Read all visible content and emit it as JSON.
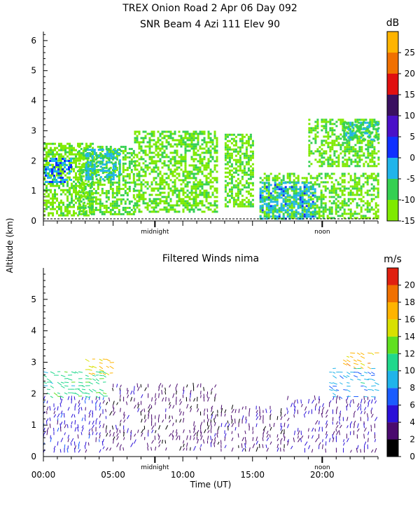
{
  "title_line1": "TREX Onion Road   2 Apr 06 Day 092",
  "title_line2": "SNR Beam 4 Azi 111 Elev 90",
  "shared_ylabel": "Altitude (km)",
  "chart_data": [
    {
      "type": "heatmap",
      "title": "SNR Beam 4 Azi 111 Elev 90",
      "xlabel": "",
      "ylabel": "Altitude (km)",
      "xlim": [
        0,
        24
      ],
      "ylim": [
        0,
        6.3
      ],
      "y_ticks": [
        0,
        1,
        2,
        3,
        4,
        5,
        6
      ],
      "x_markers": [
        {
          "x": 8,
          "label": "midnight"
        },
        {
          "x": 20,
          "label": "noon"
        }
      ],
      "colorbar": {
        "unit": "dB",
        "range": [
          -15,
          30
        ],
        "tick_values": [
          -15,
          -10,
          -5,
          0,
          5,
          10,
          15,
          20,
          25
        ],
        "colors": [
          "#7fea00",
          "#35d052",
          "#20b4ea",
          "#1030ff",
          "#4a10c8",
          "#3a1060",
          "#e01010",
          "#f07000",
          "#ffb400"
        ]
      },
      "regions": [
        {
          "x": [
            0,
            3.5
          ],
          "y": [
            0.2,
            2.6
          ],
          "db": -12
        },
        {
          "x": [
            0.1,
            2.0
          ],
          "y": [
            1.3,
            2.1
          ],
          "db": 0
        },
        {
          "x": [
            2.5,
            6.5
          ],
          "y": [
            0.2,
            2.5
          ],
          "db": -10
        },
        {
          "x": [
            3.0,
            5.5
          ],
          "y": [
            1.4,
            2.4
          ],
          "db": -4
        },
        {
          "x": [
            6.5,
            12.5
          ],
          "y": [
            0.3,
            3.0
          ],
          "db": -11
        },
        {
          "x": [
            13.0,
            15.0
          ],
          "y": [
            0.5,
            2.9
          ],
          "db": -11
        },
        {
          "x": [
            15.5,
            24.0
          ],
          "y": [
            0.1,
            1.6
          ],
          "db": -11
        },
        {
          "x": [
            15.5,
            19.5
          ],
          "y": [
            0.1,
            1.3
          ],
          "db": -3
        },
        {
          "x": [
            19.0,
            24.0
          ],
          "y": [
            1.8,
            3.4
          ],
          "db": -11
        },
        {
          "x": [
            21.5,
            24.0
          ],
          "y": [
            2.7,
            3.3
          ],
          "db": -6
        }
      ]
    },
    {
      "type": "vector",
      "title": "Filtered Winds nima",
      "xlabel": "Time (UT)",
      "ylabel": "Altitude (km)",
      "xlim": [
        0,
        24
      ],
      "ylim": [
        0,
        6
      ],
      "x_ticks": [
        0,
        5,
        10,
        15,
        20
      ],
      "x_tick_labels": [
        "00:00",
        "05:00",
        "10:00",
        "15:00",
        "20:00"
      ],
      "y_ticks": [
        0,
        1,
        2,
        3,
        4,
        5
      ],
      "x_markers": [
        {
          "x": 8,
          "label": "midnight"
        },
        {
          "x": 20,
          "label": "noon"
        }
      ],
      "colorbar": {
        "unit": "m/s",
        "range": [
          0,
          22
        ],
        "tick_values": [
          0,
          2,
          4,
          6,
          8,
          10,
          12,
          14,
          16,
          18,
          20
        ],
        "colors": [
          "#000000",
          "#4a0a6e",
          "#2a10d8",
          "#1a5cff",
          "#20b4ea",
          "#20d88c",
          "#60e020",
          "#d8e000",
          "#ffb400",
          "#f07000",
          "#e02010"
        ]
      },
      "wind_regions": [
        {
          "x": [
            0,
            4.5
          ],
          "y": [
            0.1,
            1.8
          ],
          "speed": 5
        },
        {
          "x": [
            0,
            4.5
          ],
          "y": [
            1.9,
            2.7
          ],
          "speed": 11
        },
        {
          "x": [
            3.0,
            5.0
          ],
          "y": [
            2.6,
            3.1
          ],
          "speed": 16
        },
        {
          "x": [
            4.5,
            12.5
          ],
          "y": [
            0.1,
            2.2
          ],
          "speed": 3
        },
        {
          "x": [
            12.5,
            17.5
          ],
          "y": [
            0.1,
            1.5
          ],
          "speed": 3
        },
        {
          "x": [
            17.5,
            24.0
          ],
          "y": [
            0.1,
            1.8
          ],
          "speed": 4
        },
        {
          "x": [
            20.5,
            24.0
          ],
          "y": [
            1.9,
            2.8
          ],
          "speed": 9
        },
        {
          "x": [
            21.5,
            24.0
          ],
          "y": [
            2.8,
            3.3
          ],
          "speed": 17
        }
      ]
    }
  ]
}
